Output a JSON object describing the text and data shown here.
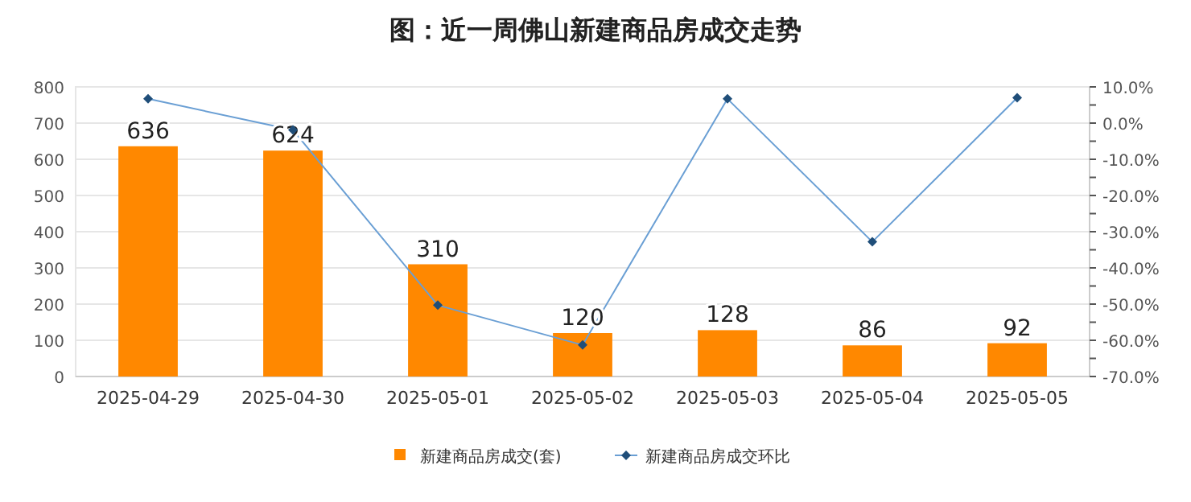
{
  "chart_data": {
    "type": "bar",
    "title": "图：近一周佛山新建商品房成交走势",
    "categories": [
      "2025-04-29",
      "2025-04-30",
      "2025-05-01",
      "2025-05-02",
      "2025-05-03",
      "2025-05-04",
      "2025-05-05"
    ],
    "series": [
      {
        "name": "新建商品房成交(套)",
        "color": "#ff8800",
        "values": [
          636,
          624,
          310,
          120,
          128,
          86,
          92
        ],
        "value_labels": [
          "636",
          "624",
          "310",
          "120",
          "128",
          "86",
          "92"
        ]
      },
      {
        "name": "新建商品房成交环比",
        "type": "line",
        "axis": "y2",
        "color": "#6a9fd4",
        "marker": "diamond",
        "line_style": "solid",
        "values": [
          6.7,
          -1.9,
          -50.3,
          -61.3,
          6.7,
          -32.8,
          7.0
        ]
      }
    ],
    "ylim": [
      0,
      800
    ],
    "yticks": [
      0,
      100,
      200,
      300,
      400,
      500,
      600,
      700,
      800
    ],
    "y2lim": [
      -70,
      10
    ],
    "y2ticks": [
      {
        "value": -70,
        "label": "-70.0%"
      },
      {
        "value": -65,
        "label": null
      },
      {
        "value": -60,
        "label": "-60.0%"
      },
      {
        "value": -55,
        "label": null
      },
      {
        "value": -50,
        "label": "-50.0%"
      },
      {
        "value": -45,
        "label": null
      },
      {
        "value": -40,
        "label": "-40.0%"
      },
      {
        "value": -35,
        "label": null
      },
      {
        "value": -30,
        "label": "-30.0%"
      },
      {
        "value": -25,
        "label": null
      },
      {
        "value": -20,
        "label": "-20.0%"
      },
      {
        "value": -15,
        "label": null
      },
      {
        "value": -10,
        "label": "-10.0%"
      },
      {
        "value": -5,
        "label": null
      },
      {
        "value": 0,
        "label": "0.0%"
      },
      {
        "value": 5,
        "label": null
      },
      {
        "value": 10,
        "label": "10.0%"
      }
    ],
    "grid": "y",
    "legend": "bottom"
  }
}
